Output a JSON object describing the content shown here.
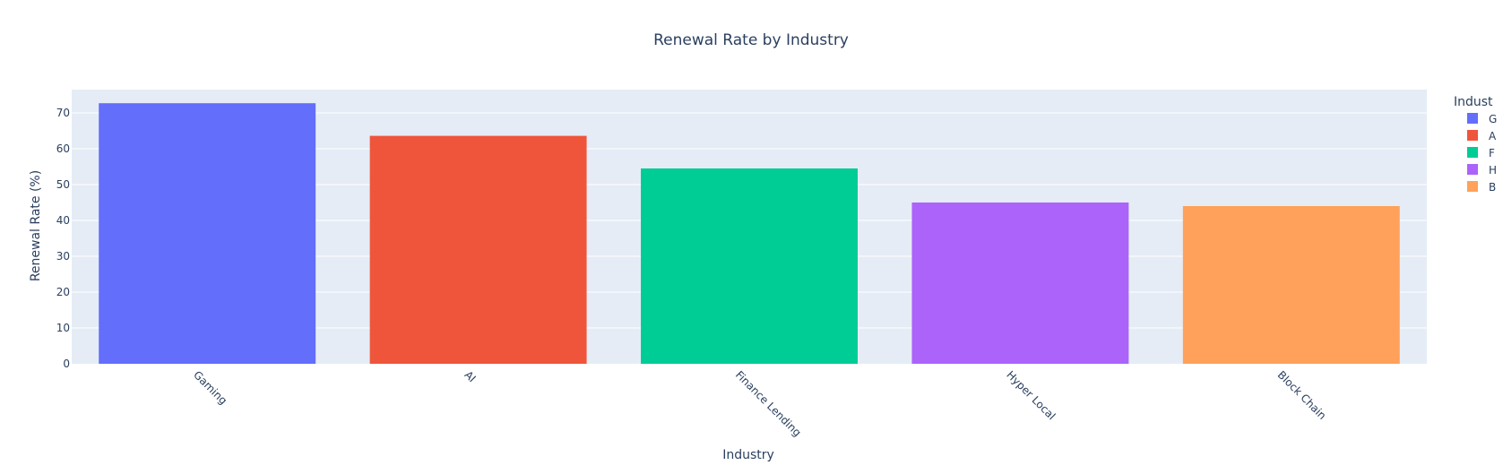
{
  "chart_data": {
    "type": "bar",
    "title": "Renewal Rate by Industry",
    "xlabel": "Industry",
    "ylabel": "Renewal Rate (%)",
    "categories": [
      "Gaming",
      "AI",
      "Finance Lending",
      "Hyper Local",
      "Block Chain"
    ],
    "values": [
      72.7,
      63.6,
      54.5,
      45.0,
      44.0
    ],
    "colors": [
      "#636efa",
      "#EF553B",
      "#00cc96",
      "#ab63fa",
      "#FFA15A"
    ],
    "ylim": [
      0,
      76.5
    ],
    "yticks": [
      0,
      10,
      20,
      30,
      40,
      50,
      60,
      70
    ],
    "grid": true,
    "legend": {
      "title": "Industry",
      "placement": "right",
      "entries": [
        "Gaming",
        "AI",
        "Finance Lending",
        "Hyper Local",
        "Block Chain"
      ],
      "visible_text": [
        "Indust",
        "G",
        "A",
        "F",
        "H",
        "B"
      ]
    },
    "style": {
      "plot_bg": "#E5ECF6",
      "grid_color": "#ffffff",
      "text_color": "#2a3f5f"
    }
  }
}
